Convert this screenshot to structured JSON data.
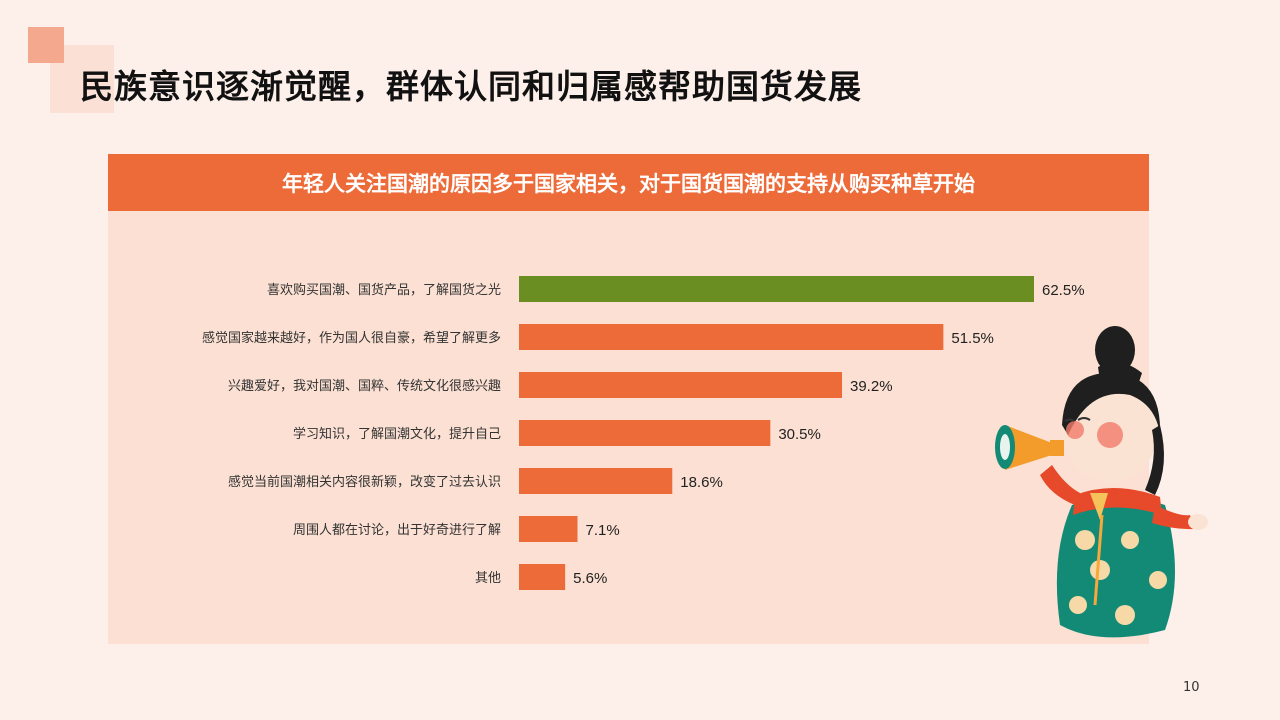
{
  "page": {
    "title": "民族意识逐渐觉醒，群体认同和归属感帮助国货发展",
    "banner": "年轻人关注国潮的原因多于国家相关，对于国货国潮的支持从购买种草开始",
    "page_number": "10"
  },
  "colors": {
    "background": "#fdf0ea",
    "banner": "#ec6b39",
    "panel": "#fbe0d3",
    "bar": "#ec6b39",
    "bar_highlight": "#6b8e23"
  },
  "chart_data": {
    "type": "bar",
    "orientation": "horizontal",
    "categories": [
      "喜欢购买国潮、国货产品，了解国货之光",
      "感觉国家越来越好，作为国人很自豪，希望了解更多",
      "兴趣爱好，我对国潮、国粹、传统文化很感兴趣",
      "学习知识，了解国潮文化，提升自己",
      "感觉当前国潮相关内容很新颖，改变了过去认识",
      "周围人都在讨论，出于好奇进行了解",
      "其他"
    ],
    "values": [
      62.5,
      51.5,
      39.2,
      30.5,
      18.6,
      7.1,
      5.6
    ],
    "value_labels": [
      "62.5%",
      "51.5%",
      "39.2%",
      "30.5%",
      "18.6%",
      "7.1%",
      "5.6%"
    ],
    "unit": "%",
    "highlight_index": 0,
    "xlim": [
      0,
      62.5
    ],
    "grid": false,
    "legend": "none"
  }
}
